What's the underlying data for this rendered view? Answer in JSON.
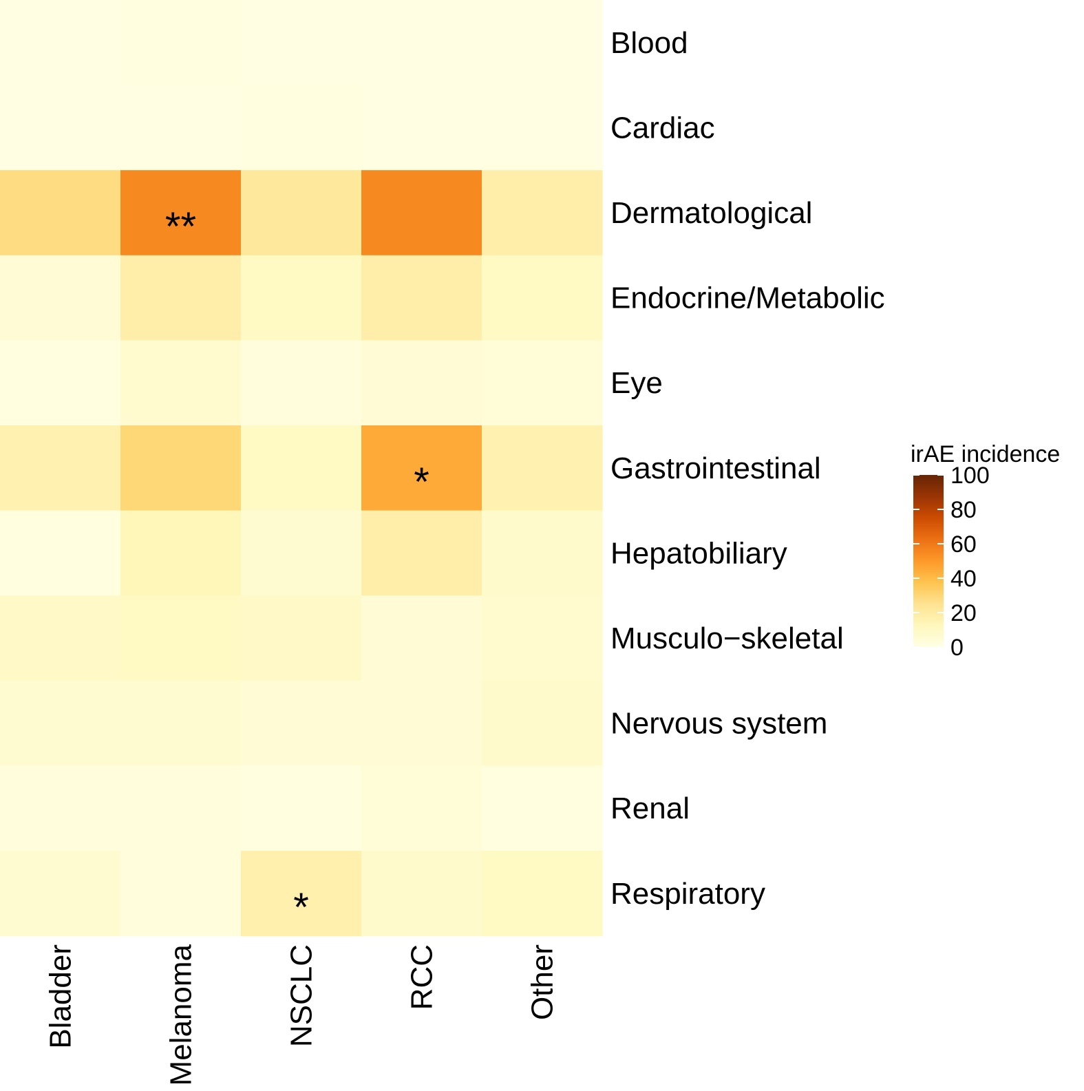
{
  "chart_data": {
    "type": "heatmap",
    "rows": [
      "Blood",
      "Cardiac",
      "Dermatological",
      "Endocrine/Metabolic",
      "Eye",
      "Gastrointestinal",
      "Hepatobiliary",
      "Musculo−skeletal",
      "Nervous system",
      "Renal",
      "Respiratory"
    ],
    "columns": [
      "Bladder",
      "Melanoma",
      "NSCLC",
      "RCC",
      "Other"
    ],
    "values": [
      [
        1,
        2,
        1,
        1,
        1
      ],
      [
        1,
        1,
        2,
        1,
        1
      ],
      [
        28,
        55,
        22,
        55,
        18
      ],
      [
        5,
        18,
        10,
        18,
        10
      ],
      [
        2,
        7,
        3,
        5,
        4
      ],
      [
        16,
        30,
        10,
        45,
        16
      ],
      [
        2,
        13,
        6,
        18,
        8
      ],
      [
        9,
        10,
        9,
        5,
        7
      ],
      [
        6,
        6,
        5,
        5,
        8
      ],
      [
        3,
        3,
        2,
        4,
        2
      ],
      [
        6,
        3,
        17,
        8,
        10
      ]
    ],
    "annotations": [
      {
        "row": "Dermatological",
        "column": "Melanoma",
        "label": "**"
      },
      {
        "row": "Gastrointestinal",
        "column": "RCC",
        "label": "*"
      },
      {
        "row": "Respiratory",
        "column": "NSCLC",
        "label": "*"
      }
    ],
    "colorscale": {
      "title": "irAE incidence",
      "min": 0,
      "max": 100,
      "ticks": [
        0,
        20,
        40,
        60,
        80,
        100
      ],
      "stops": [
        {
          "value": 0,
          "color": "#ffffe5"
        },
        {
          "value": 12.5,
          "color": "#fff7bc"
        },
        {
          "value": 25,
          "color": "#fee391"
        },
        {
          "value": 37.5,
          "color": "#fec44f"
        },
        {
          "value": 50,
          "color": "#fe9929"
        },
        {
          "value": 62.5,
          "color": "#ec7014"
        },
        {
          "value": 75,
          "color": "#cc4c02"
        },
        {
          "value": 87.5,
          "color": "#993404"
        },
        {
          "value": 100,
          "color": "#662506"
        }
      ]
    },
    "legend_position": "right"
  }
}
